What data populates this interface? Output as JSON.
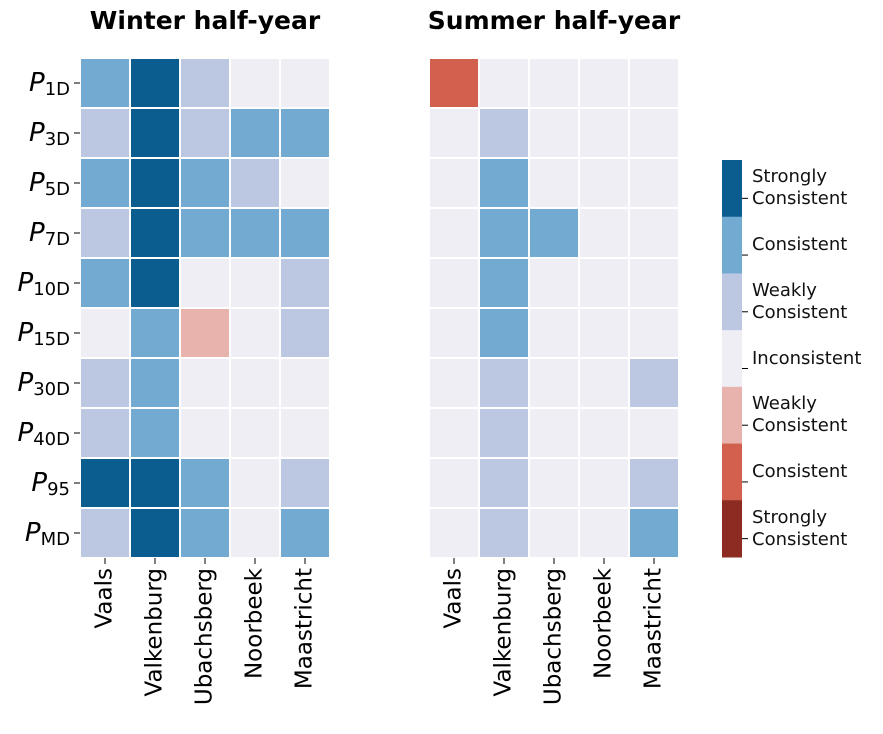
{
  "chart_data": [
    {
      "type": "heatmap",
      "title": "Winter half-year",
      "categories": [
        "Vaals",
        "Valkenburg",
        "Ubachsberg",
        "Noorbeek",
        "Maastricht"
      ],
      "rows": [
        {
          "symbol": "P",
          "subscript": "1D"
        },
        {
          "symbol": "P",
          "subscript": "3D"
        },
        {
          "symbol": "P",
          "subscript": "5D"
        },
        {
          "symbol": "P",
          "subscript": "7D"
        },
        {
          "symbol": "P",
          "subscript": "10D"
        },
        {
          "symbol": "P",
          "subscript": "15D"
        },
        {
          "symbol": "P",
          "subscript": "30D"
        },
        {
          "symbol": "P",
          "subscript": "40D"
        },
        {
          "symbol": "P",
          "subscript": "95"
        },
        {
          "symbol": "P",
          "subscript": "MD"
        }
      ],
      "values": [
        [
          2,
          3,
          1,
          0,
          0
        ],
        [
          1,
          3,
          1,
          2,
          2
        ],
        [
          2,
          3,
          2,
          1,
          0
        ],
        [
          1,
          3,
          2,
          2,
          2
        ],
        [
          2,
          3,
          0,
          0,
          1
        ],
        [
          0,
          2,
          -1,
          0,
          1
        ],
        [
          1,
          2,
          0,
          0,
          0
        ],
        [
          1,
          2,
          0,
          0,
          0
        ],
        [
          3,
          3,
          2,
          0,
          1
        ],
        [
          1,
          3,
          2,
          0,
          2
        ]
      ]
    },
    {
      "type": "heatmap",
      "title": "Summer half-year",
      "categories": [
        "Vaals",
        "Valkenburg",
        "Ubachsberg",
        "Noorbeek",
        "Maastricht"
      ],
      "values": [
        [
          -2,
          0,
          0,
          0,
          0
        ],
        [
          0,
          1,
          0,
          0,
          0
        ],
        [
          0,
          2,
          0,
          0,
          0
        ],
        [
          0,
          2,
          2,
          0,
          0
        ],
        [
          0,
          2,
          0,
          0,
          0
        ],
        [
          0,
          2,
          0,
          0,
          0
        ],
        [
          0,
          1,
          0,
          0,
          1
        ],
        [
          0,
          1,
          0,
          0,
          0
        ],
        [
          0,
          1,
          0,
          0,
          1
        ],
        [
          0,
          1,
          0,
          0,
          2
        ]
      ]
    }
  ],
  "colorbar": {
    "levels": [
      3,
      2,
      1,
      0,
      -1,
      -2,
      -3
    ],
    "labels": [
      "Strongly Consistent",
      "Consistent",
      "Weakly Consistent",
      "Inconsistent",
      "Weakly Consistent",
      "Consistent",
      "Strongly Consistent"
    ],
    "colors": [
      "#0b5c8f",
      "#72aad1",
      "#bcc7e1",
      "#efeef5",
      "#e8b3ac",
      "#d2604f",
      "#8c2b22"
    ]
  }
}
